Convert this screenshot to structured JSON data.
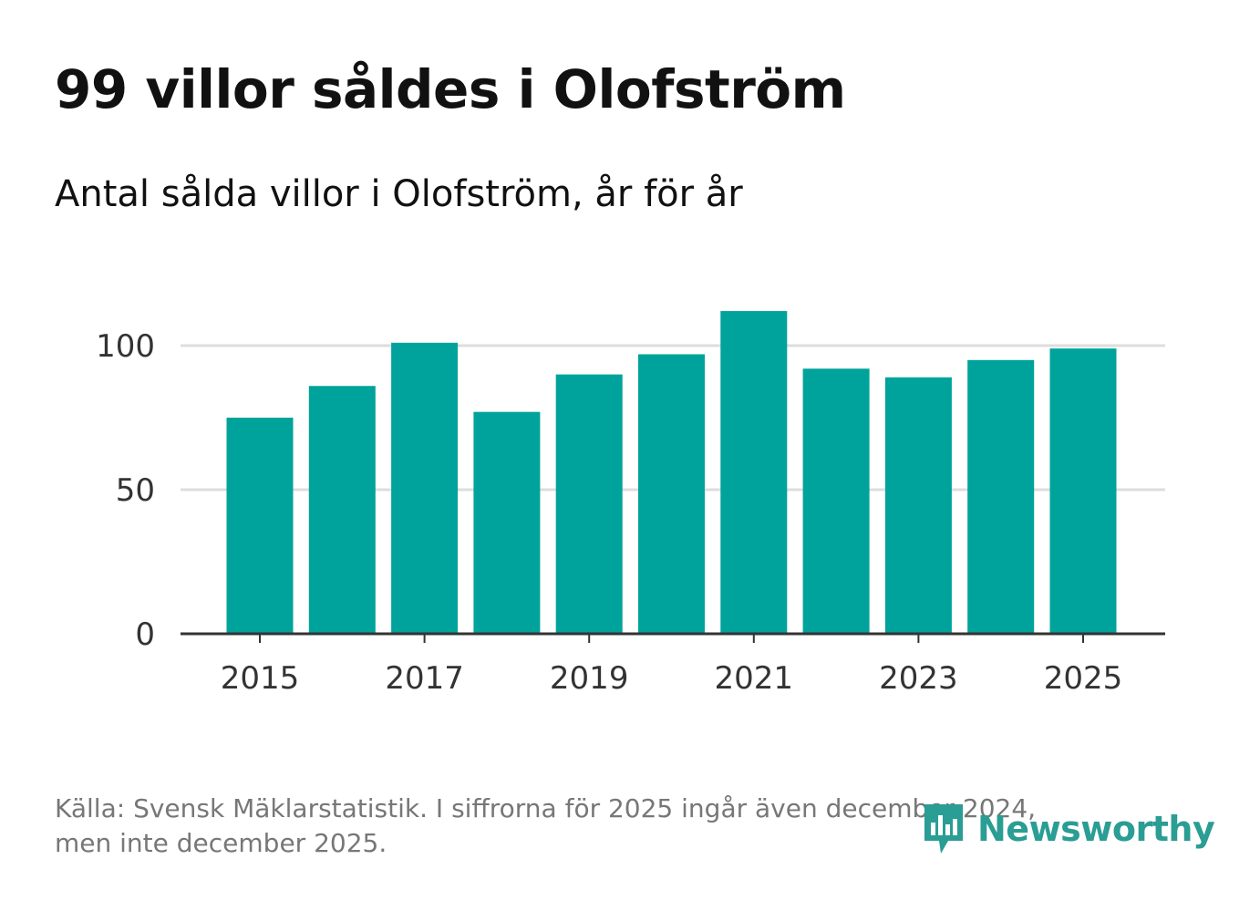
{
  "title": "99 villor såldes i Olofström",
  "subtitle": "Antal sålda villor i Olofström, år för år",
  "footer": {
    "line1": "Källa: Svensk Mäklarstatistik. I siffrorna för 2025 ingår även december 2024,",
    "line2": "men inte december 2025."
  },
  "logo": {
    "text": "Newsworthy",
    "icon": "newsworthy-logo-icon"
  },
  "colors": {
    "bar": "#00a39b",
    "grid": "#dddddd",
    "axis": "#333333",
    "logo": "#2a9d94"
  },
  "chart_data": {
    "type": "bar",
    "title": "99 villor såldes i Olofström",
    "subtitle": "Antal sålda villor i Olofström, år för år",
    "xlabel": "",
    "ylabel": "",
    "categories": [
      "2015",
      "2016",
      "2017",
      "2018",
      "2019",
      "2020",
      "2021",
      "2022",
      "2023",
      "2024",
      "2025"
    ],
    "values": [
      75,
      86,
      101,
      77,
      90,
      97,
      112,
      92,
      89,
      95,
      99
    ],
    "x_tick_labels": [
      "2015",
      "2017",
      "2019",
      "2021",
      "2023",
      "2025"
    ],
    "y_ticks": [
      0,
      50,
      100
    ],
    "y_tick_labels": [
      "0",
      "50",
      "100"
    ],
    "ylim": [
      0,
      120
    ],
    "grid": true,
    "legend": "none"
  }
}
